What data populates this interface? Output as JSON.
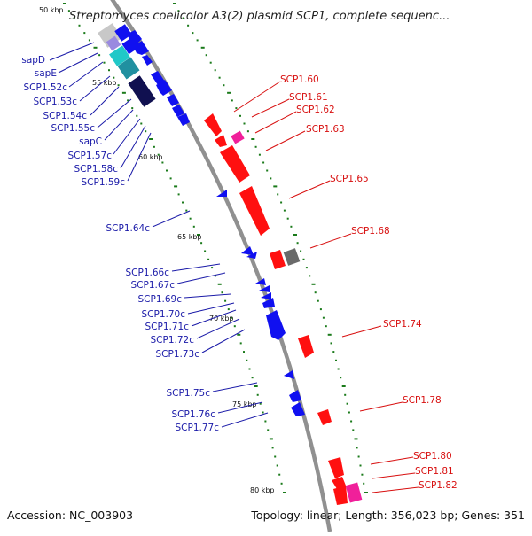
{
  "title": "Streptomyces coelicolor A3(2) plasmid SCP1, complete sequenc...",
  "footer": {
    "accession": "Accession: NC_003903",
    "summary": "Topology: linear; Length: 356,023 bp; Genes: 351"
  },
  "colors": {
    "forward_gene": "#ff1010",
    "reverse_gene": "#1010f0",
    "pink_gene": "#f0209a",
    "gray_gene": "#6a6a6a",
    "dark_navy_gene": "#101050",
    "cyan_gene": "#20c8c8",
    "teal_gene": "#2090a0",
    "lavender_gene": "#9a8ae0",
    "light_gray_gene": "#c8c8c8",
    "backbone": "#909090",
    "tick_dots": "#1a7a1a",
    "forward_label": "#d81010",
    "reverse_label": "#1a1aa8"
  },
  "kbp_labels": [
    "50 kbp",
    "55 kbp",
    "60 kbp",
    "65 kbp",
    "70 kbp",
    "75 kbp",
    "80 kbp"
  ],
  "forward_labels": [
    "SCP1.60",
    "SCP1.61",
    "SCP1.62",
    "SCP1.63",
    "SCP1.65",
    "SCP1.68",
    "SCP1.74",
    "SCP1.78",
    "SCP1.80",
    "SCP1.81",
    "SCP1.82"
  ],
  "reverse_labels": [
    "sapD",
    "sapE",
    "SCP1.52c",
    "SCP1.53c",
    "SCP1.54c",
    "SCP1.55c",
    "sapC",
    "SCP1.57c",
    "SCP1.58c",
    "SCP1.59c",
    "SCP1.64c",
    "SCP1.66c",
    "SCP1.67c",
    "SCP1.69c",
    "SCP1.70c",
    "SCP1.71c",
    "SCP1.72c",
    "SCP1.73c",
    "SCP1.75c",
    "SCP1.76c",
    "SCP1.77c"
  ]
}
